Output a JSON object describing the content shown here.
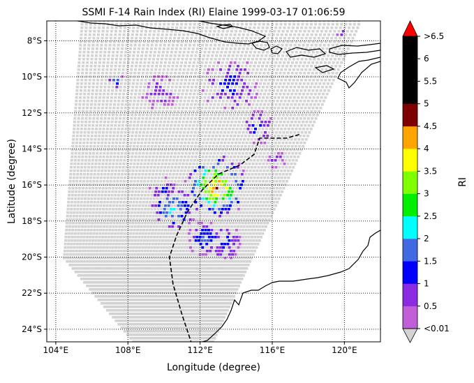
{
  "title": "SSMI F-14 Rain Index (RI) Elaine 1999-03-17 01:06:59",
  "xlabel": "Longitude (degree)",
  "ylabel": "Latitude (degree)",
  "colorbar_label": "RI",
  "x_ticks": [
    {
      "value": 104,
      "label": "104°E"
    },
    {
      "value": 108,
      "label": "108°E"
    },
    {
      "value": 112,
      "label": "112°E"
    },
    {
      "value": 116,
      "label": "116°E"
    },
    {
      "value": 120,
      "label": "120°E"
    }
  ],
  "y_ticks": [
    {
      "value": -8,
      "label": "8°S"
    },
    {
      "value": -10,
      "label": "10°S"
    },
    {
      "value": -12,
      "label": "12°S"
    },
    {
      "value": -14,
      "label": "14°S"
    },
    {
      "value": -16,
      "label": "16°S"
    },
    {
      "value": -18,
      "label": "18°S"
    },
    {
      "value": -20,
      "label": "20°S"
    },
    {
      "value": -22,
      "label": "22°S"
    },
    {
      "value": -24,
      "label": "24°S"
    }
  ],
  "colorbar_ticks": [
    "<0.01",
    "0.5",
    "1",
    "1.5",
    "2",
    "2.5",
    "3",
    "3.5",
    "4",
    "4.5",
    "5",
    "5.5",
    "6",
    ">6.5"
  ],
  "colorbar_colors": [
    "#c05fd8",
    "#8b2be2",
    "#0000ff",
    "#4169e1",
    "#00ffff",
    "#00ee00",
    "#7fff00",
    "#ffff00",
    "#ffa500",
    "#7f0000",
    "#000000",
    "#000000",
    "#000000"
  ],
  "colorbar_over_color": "#ff0000",
  "colorbar_under_color": "#d3d3d3",
  "swath_color": "#d3d3d3",
  "chart_data": {
    "type": "heatmap",
    "xlim": [
      103.5,
      122
    ],
    "ylim": [
      -24.7,
      -6.9
    ],
    "grid": true,
    "track": [
      [
        117.5,
        -13.2
      ],
      [
        116.8,
        -13.4
      ],
      [
        115.8,
        -13.4
      ],
      [
        115.3,
        -13.4
      ],
      [
        115.0,
        -14.3
      ],
      [
        114.2,
        -14.9
      ],
      [
        113.0,
        -15.4
      ],
      [
        112.1,
        -16.3
      ],
      [
        111.3,
        -17.5
      ],
      [
        110.7,
        -18.8
      ],
      [
        110.3,
        -20.0
      ],
      [
        110.5,
        -21.5
      ],
      [
        111.0,
        -23.2
      ],
      [
        111.5,
        -24.7
      ]
    ],
    "rain_clusters": [
      {
        "lon": 112.9,
        "lat": -16.1,
        "spread": 1.8,
        "peak_level": 8
      },
      {
        "lon": 110.5,
        "lat": -17.3,
        "spread": 1.3,
        "peak_level": 4
      },
      {
        "lon": 112.3,
        "lat": -19.0,
        "spread": 1.0,
        "peak_level": 3
      },
      {
        "lon": 113.4,
        "lat": -19.2,
        "spread": 1.0,
        "peak_level": 2
      },
      {
        "lon": 113.7,
        "lat": -10.5,
        "spread": 1.6,
        "peak_level": 2
      },
      {
        "lon": 107.3,
        "lat": -10.2,
        "spread": 0.5,
        "peak_level": 3
      },
      {
        "lon": 109.8,
        "lat": -10.8,
        "spread": 1.1,
        "peak_level": 1
      },
      {
        "lon": 115.2,
        "lat": -12.8,
        "spread": 1.0,
        "peak_level": 2
      },
      {
        "lon": 110.0,
        "lat": -16.3,
        "spread": 0.8,
        "peak_level": 2
      },
      {
        "lon": 116.2,
        "lat": -14.6,
        "spread": 0.6,
        "peak_level": 1
      },
      {
        "lon": 119.9,
        "lat": -7.6,
        "spread": 0.3,
        "peak_level": 1
      }
    ]
  }
}
